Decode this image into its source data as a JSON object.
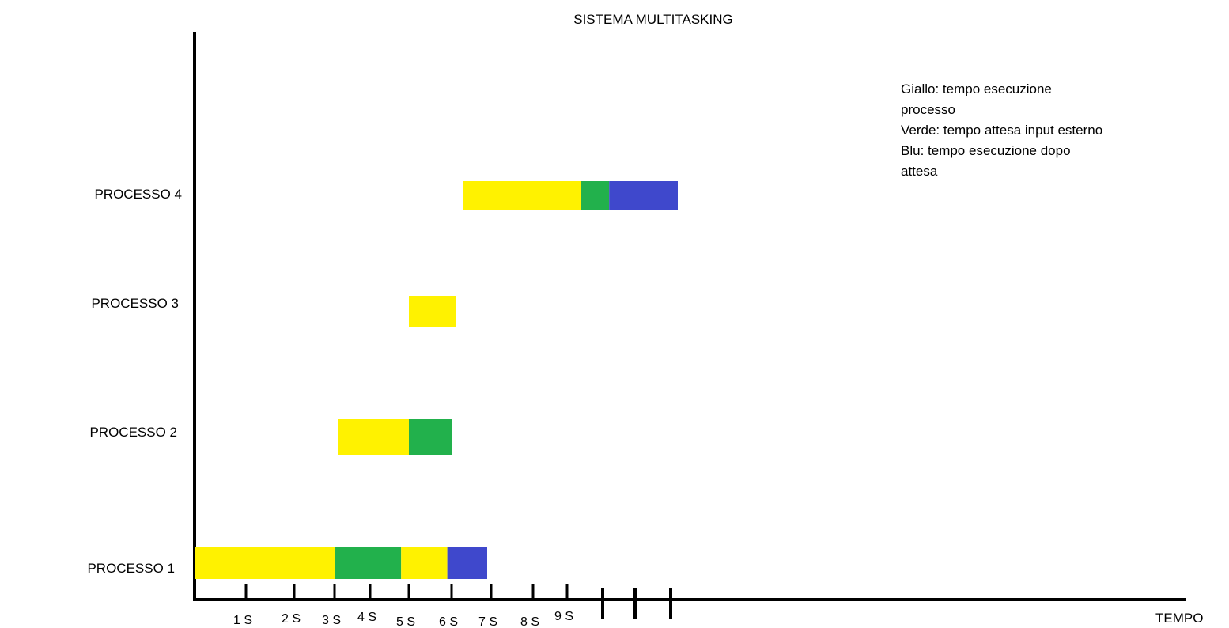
{
  "chart_data": {
    "type": "gantt",
    "title": "SISTEMA MULTITASKING",
    "xlabel": "TEMPO",
    "ylabel": "",
    "x_tick_labels": [
      "1 S",
      "2 S",
      "3 S",
      "4 S",
      "5 S",
      "6 S",
      "7 S",
      "8 S",
      "9 S"
    ],
    "unlabeled_major_ticks": [
      10,
      11,
      12
    ],
    "categories": [
      "PROCESSO 1",
      "PROCESSO 2",
      "PROCESSO 3",
      "PROCESSO 4"
    ],
    "colors": {
      "yellow": "#FFF200",
      "green": "#22B14C",
      "blue": "#3F48CC"
    },
    "series": [
      {
        "category": "PROCESSO 1",
        "segments": [
          {
            "start": 0.0,
            "end": 3.0,
            "color": "yellow"
          },
          {
            "start": 3.0,
            "end": 4.8,
            "color": "green"
          },
          {
            "start": 4.8,
            "end": 5.9,
            "color": "yellow"
          },
          {
            "start": 5.9,
            "end": 6.9,
            "color": "blue"
          }
        ]
      },
      {
        "category": "PROCESSO 2",
        "segments": [
          {
            "start": 3.1,
            "end": 5.0,
            "color": "yellow"
          },
          {
            "start": 5.0,
            "end": 6.0,
            "color": "green"
          }
        ]
      },
      {
        "category": "PROCESSO 3",
        "segments": [
          {
            "start": 5.0,
            "end": 6.1,
            "color": "yellow"
          }
        ]
      },
      {
        "category": "PROCESSO 4",
        "segments": [
          {
            "start": 6.3,
            "end": 9.4,
            "color": "yellow"
          },
          {
            "start": 9.4,
            "end": 10.2,
            "color": "green"
          },
          {
            "start": 10.2,
            "end": 12.2,
            "color": "blue"
          }
        ]
      }
    ],
    "legend": [
      {
        "color": "yellow",
        "text": "Giallo: tempo esecuzione processo"
      },
      {
        "color": "green",
        "text": "Verde: tempo attesa input esterno"
      },
      {
        "color": "blue",
        "text": "Blu: tempo esecuzione dopo attesa"
      }
    ],
    "legend_position": "top-right",
    "grid": false
  }
}
